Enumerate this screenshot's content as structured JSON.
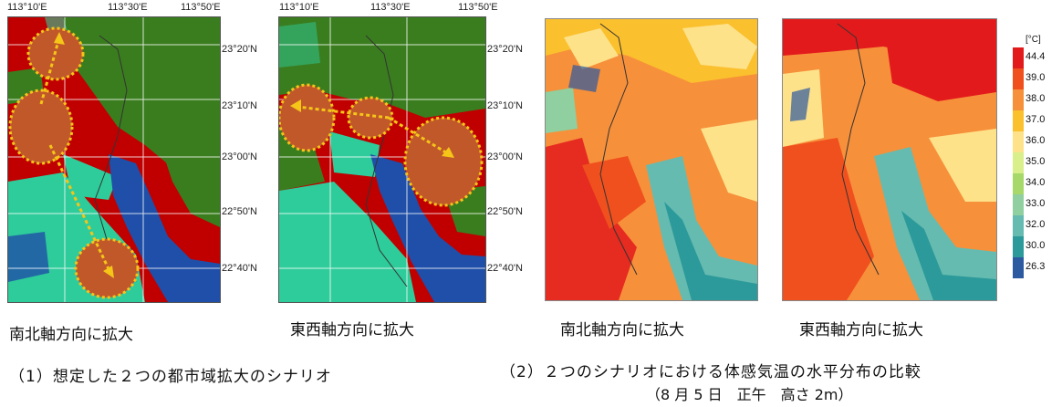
{
  "panel1": {
    "lon_ticks": [
      "113°10'E",
      "113°30'E",
      "113°50'E"
    ],
    "lat_ticks": [
      "23°20'N",
      "23°10'N",
      "23°00'N",
      "22°50'N",
      "22°40'N"
    ],
    "left_map": {
      "caption": "南北軸方向に拡大"
    },
    "right_map": {
      "caption": "東西軸方向に拡大"
    },
    "caption": "（1）想定した２つの都市域拡大のシナリオ",
    "landuse_colors": {
      "urban": "#c00000",
      "forest": "#3a7d1e",
      "grass": "#2ecc9a",
      "water": "#1f4fa8"
    }
  },
  "panel2": {
    "left_map": {
      "caption": "南北軸方向に拡大"
    },
    "right_map": {
      "caption": "東西軸方向に拡大"
    },
    "caption": "（2）２つのシナリオにおける体感気温の水平分布の比較",
    "subcaption": "（8 月 5 日　正午　高さ 2m）"
  },
  "legend": {
    "unit": "[°C]",
    "entries": [
      {
        "label": "44.4",
        "color": "#e31a1c"
      },
      {
        "label": "39.0",
        "color": "#f0501e"
      },
      {
        "label": "38.0",
        "color": "#f7903a"
      },
      {
        "label": "37.0",
        "color": "#fbc02d"
      },
      {
        "label": "36.0",
        "color": "#fde28a"
      },
      {
        "label": "35.0",
        "color": "#d9ef8b"
      },
      {
        "label": "34.0",
        "color": "#a6d96a"
      },
      {
        "label": "33.0",
        "color": "#8fcfa0"
      },
      {
        "label": "32.0",
        "color": "#66bbb0"
      },
      {
        "label": "30.0",
        "color": "#2c9a9a"
      },
      {
        "label": "26.3",
        "color": "#2c5aa0"
      }
    ]
  }
}
